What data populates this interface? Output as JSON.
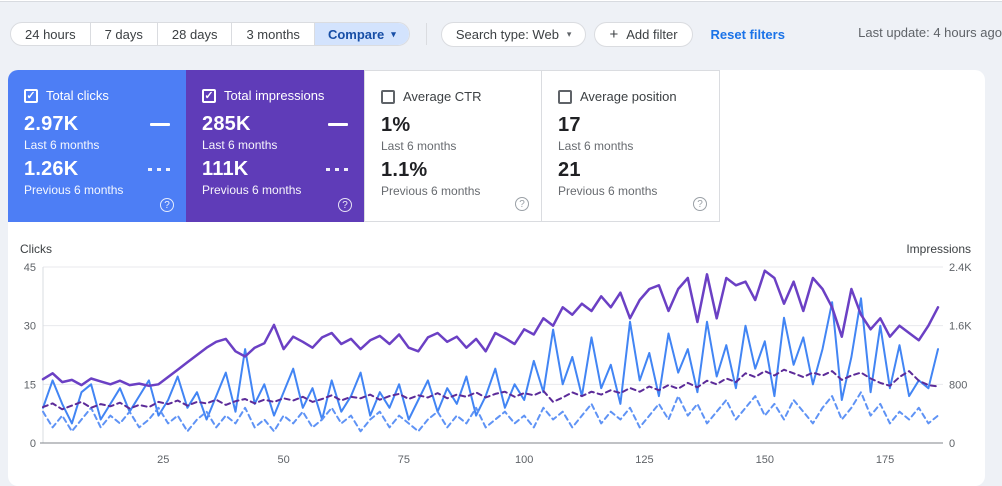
{
  "toolbar": {
    "date_ranges": [
      {
        "label": "24 hours"
      },
      {
        "label": "7 days"
      },
      {
        "label": "28 days"
      },
      {
        "label": "3 months"
      }
    ],
    "compare_label": "Compare",
    "caret": "▾",
    "search_type_label": "Search type: Web",
    "add_filter": {
      "plus": "+",
      "label": "Add filter"
    },
    "reset_filters_label": "Reset filters",
    "last_update": "Last update: 4 hours ago"
  },
  "cards": [
    {
      "label": "Total clicks",
      "checked": "✓",
      "current_value": "2.97K",
      "current_period": "Last 6 months",
      "previous_value": "1.26K",
      "previous_period": "Previous 6 months",
      "help": "?",
      "color": "#4d7ef5"
    },
    {
      "label": "Total impressions",
      "checked": "✓",
      "current_value": "285K",
      "current_period": "Last 6 months",
      "previous_value": "111K",
      "previous_period": "Previous 6 months",
      "help": "?",
      "color": "#5f3cb8"
    },
    {
      "label": "Average CTR",
      "checked": "",
      "current_value": "1%",
      "current_period": "Last 6 months",
      "previous_value": "1.1%",
      "previous_period": "Previous 6 months",
      "help": "?",
      "color": "#ffffff"
    },
    {
      "label": "Average position",
      "checked": "",
      "current_value": "17",
      "current_period": "Last 6 months",
      "previous_value": "21",
      "previous_period": "Previous 6 months",
      "help": "?",
      "color": "#ffffff"
    }
  ],
  "chart_data": {
    "type": "line",
    "dual_axis": true,
    "x_max": 186,
    "x_step": 2,
    "x_ticks": [
      25,
      50,
      75,
      100,
      125,
      150,
      175
    ],
    "left_axis": {
      "label": "Clicks",
      "range": [
        0,
        45
      ],
      "tick_values": [
        45,
        30,
        15,
        0
      ],
      "tick_labels": [
        "45",
        "30",
        "15",
        "0"
      ]
    },
    "right_axis": {
      "label": "Impressions",
      "range": [
        0,
        2400
      ],
      "tick_values": [
        2400,
        1600,
        800,
        0
      ],
      "tick_labels": [
        "2.4K",
        "1.6K",
        "800",
        "0"
      ]
    },
    "grid": "horizontal",
    "colors": {
      "grid": "#e8eaed",
      "axis_line": "#80868b",
      "left_spine": "#dadce0"
    },
    "series": [
      {
        "name": "Clicks - Last 6 months",
        "axis": "left",
        "color": "#4285f4",
        "dash": "solid",
        "width": 2,
        "values": [
          9,
          16,
          10,
          5,
          13,
          15,
          6,
          10,
          14,
          8,
          12,
          16,
          7,
          11,
          17,
          9,
          13,
          6,
          12,
          18,
          8,
          24,
          10,
          15,
          7,
          13,
          19,
          9,
          14,
          6,
          16,
          8,
          12,
          18,
          7,
          13,
          9,
          15,
          6,
          11,
          16,
          8,
          14,
          10,
          17,
          7,
          12,
          19,
          9,
          15,
          11,
          21,
          13,
          29,
          15,
          22,
          12,
          27,
          14,
          20,
          10,
          31,
          16,
          23,
          12,
          28,
          18,
          24,
          13,
          31,
          17,
          25,
          14,
          30,
          19,
          26,
          12,
          32,
          20,
          27,
          15,
          24,
          36,
          11,
          22,
          37,
          13,
          30,
          14,
          25,
          12,
          16,
          14,
          24
        ]
      },
      {
        "name": "Clicks - Previous 6 months",
        "axis": "left",
        "color": "#5f93f5",
        "dash": "dashed",
        "width": 2,
        "values": [
          8,
          4,
          7,
          3,
          6,
          9,
          4,
          7,
          5,
          8,
          4,
          6,
          9,
          5,
          7,
          3,
          6,
          8,
          4,
          7,
          5,
          9,
          4,
          6,
          3,
          7,
          5,
          8,
          4,
          6,
          9,
          5,
          7,
          3,
          6,
          8,
          4,
          7,
          5,
          3,
          6,
          8,
          4,
          7,
          5,
          9,
          4,
          6,
          8,
          5,
          7,
          4,
          9,
          6,
          8,
          4,
          7,
          10,
          5,
          8,
          6,
          9,
          4,
          7,
          10,
          6,
          12,
          7,
          10,
          5,
          8,
          11,
          6,
          9,
          12,
          7,
          10,
          6,
          11,
          8,
          5,
          9,
          12,
          6,
          9,
          13,
          7,
          10,
          5,
          8,
          6,
          9,
          5,
          7
        ]
      },
      {
        "name": "Impressions - Last 6 months",
        "axis": "right",
        "color": "#6b40c4",
        "dash": "solid",
        "width": 2.5,
        "values": [
          870,
          950,
          830,
          860,
          790,
          880,
          840,
          800,
          850,
          790,
          810,
          780,
          800,
          900,
          1000,
          1100,
          1200,
          1300,
          1380,
          1420,
          1250,
          1180,
          1300,
          1360,
          1610,
          1280,
          1450,
          1380,
          1300,
          1440,
          1500,
          1350,
          1420,
          1280,
          1400,
          1460,
          1350,
          1480,
          1300,
          1250,
          1440,
          1500,
          1380,
          1450,
          1300,
          1420,
          1250,
          1500,
          1430,
          1350,
          1550,
          1480,
          1700,
          1600,
          1850,
          1750,
          1900,
          1800,
          2000,
          1850,
          2050,
          1700,
          1950,
          2100,
          2150,
          1800,
          2100,
          2250,
          1650,
          2300,
          1700,
          2250,
          2150,
          2200,
          1950,
          2350,
          2250,
          1900,
          2200,
          1800,
          2250,
          2100,
          1850,
          1450,
          2100,
          1750,
          1550,
          1700,
          1450,
          1600,
          1500,
          1400,
          1600,
          1850
        ]
      },
      {
        "name": "Impressions - Previous 6 months",
        "axis": "right",
        "color": "#5c2b99",
        "dash": "dashed",
        "width": 2,
        "values": [
          490,
          540,
          460,
          510,
          560,
          480,
          530,
          500,
          550,
          470,
          520,
          490,
          560,
          530,
          580,
          510,
          560,
          540,
          590,
          520,
          570,
          600,
          540,
          590,
          560,
          610,
          580,
          630,
          560,
          600,
          650,
          580,
          630,
          610,
          660,
          590,
          640,
          670,
          600,
          650,
          620,
          680,
          610,
          660,
          630,
          690,
          620,
          670,
          700,
          630,
          680,
          650,
          710,
          560,
          620,
          690,
          640,
          700,
          660,
          720,
          680,
          750,
          700,
          770,
          720,
          790,
          740,
          820,
          760,
          850,
          800,
          880,
          830,
          950,
          900,
          980,
          920,
          1000,
          950,
          900,
          960,
          920,
          980,
          860,
          920,
          960,
          880,
          820,
          780,
          900,
          980,
          850,
          790,
          770
        ]
      }
    ]
  }
}
